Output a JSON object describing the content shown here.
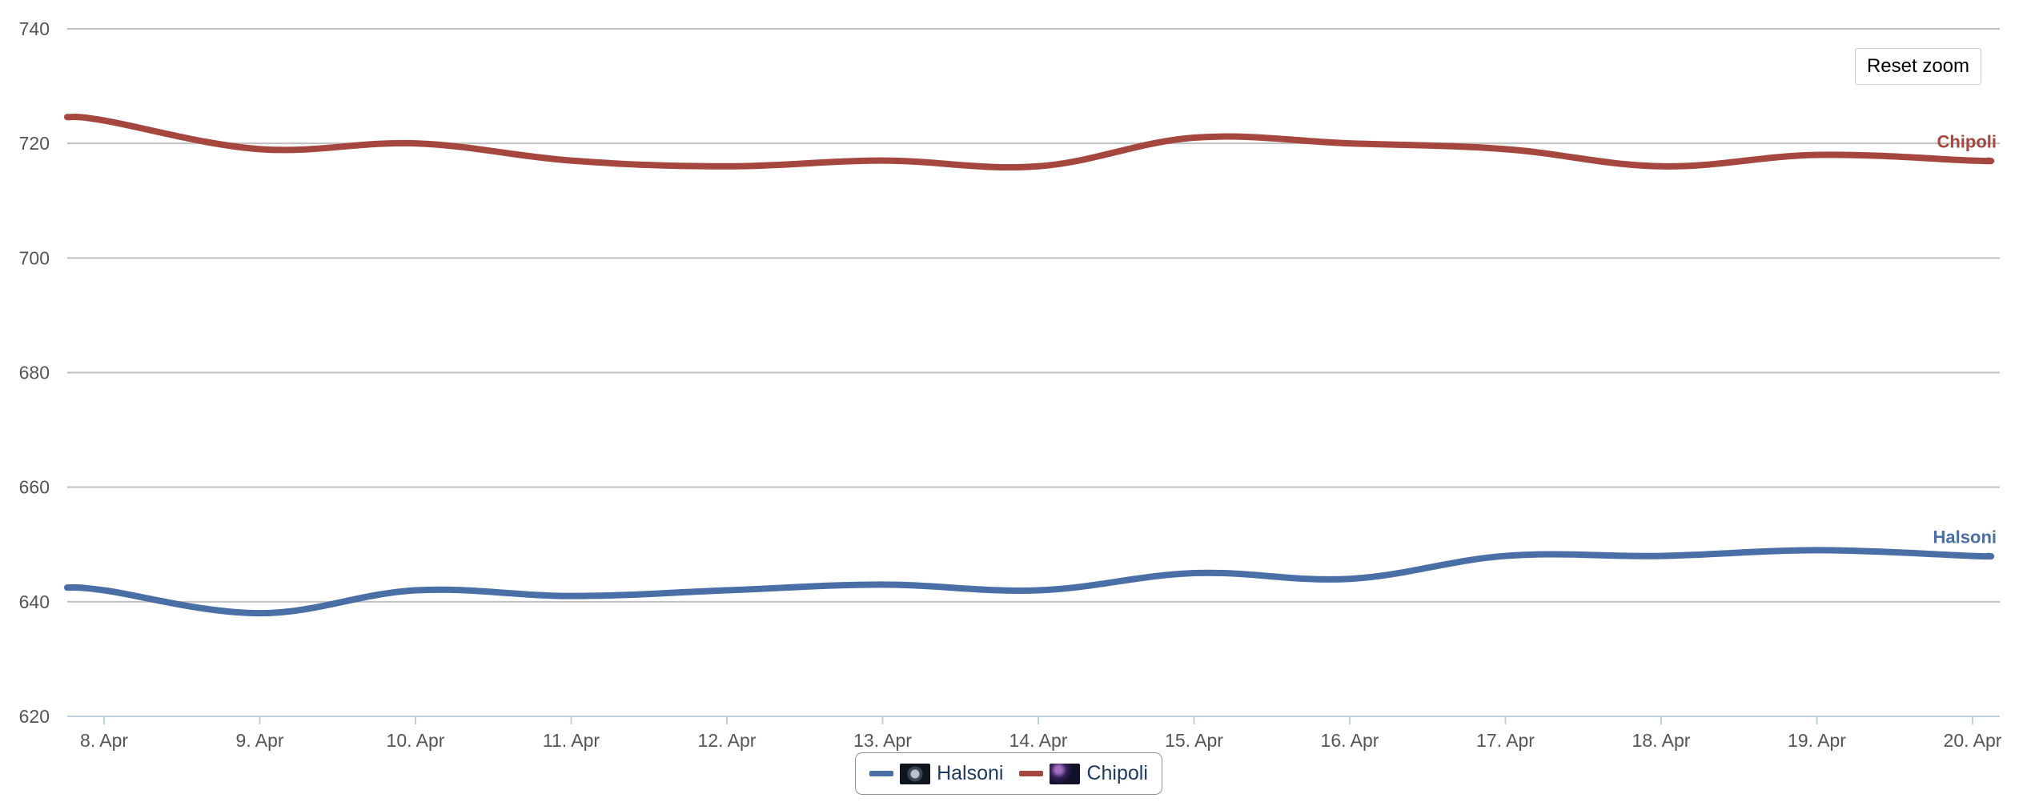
{
  "chart_data": {
    "type": "line",
    "x": [
      "8. Apr",
      "9. Apr",
      "10. Apr",
      "11. Apr",
      "12. Apr",
      "13. Apr",
      "14. Apr",
      "15. Apr",
      "16. Apr",
      "17. Apr",
      "18. Apr",
      "19. Apr",
      "20. Apr"
    ],
    "y_ticks": [
      620,
      640,
      660,
      680,
      700,
      720,
      740
    ],
    "ylim": [
      620,
      740
    ],
    "grid": true,
    "legend_position": "bottom-center",
    "series": [
      {
        "name": "Halsoni",
        "color": "#4a6ea6",
        "avatar_icon": "dark-orb-avatar-icon",
        "values": [
          642,
          638,
          642,
          641,
          642,
          643,
          642,
          645,
          644,
          648,
          648,
          649,
          648
        ]
      },
      {
        "name": "Chipoli",
        "color": "#a5473f",
        "avatar_icon": "purple-nebula-avatar-icon",
        "values": [
          724,
          719,
          720,
          717,
          716,
          717,
          716,
          721,
          720,
          719,
          716,
          718,
          717
        ]
      }
    ],
    "series_end_labels": [
      "Halsoni",
      "Chipoli"
    ]
  },
  "controls": {
    "reset_zoom_label": "Reset zoom"
  }
}
